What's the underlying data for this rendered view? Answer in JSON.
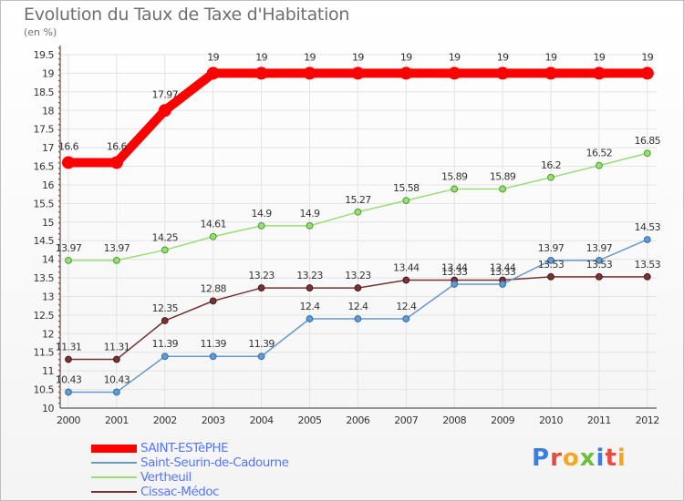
{
  "title": "Evolution du Taux de Taxe d'Habitation",
  "unit": "(en %)",
  "logo": {
    "letters": [
      "P",
      "r",
      "o",
      "x",
      "i",
      "t",
      "i"
    ],
    "colors": [
      "#3a7fe0",
      "#e74c3c",
      "#f5a623",
      "#6cbf3a",
      "#3a7fe0",
      "#e74c3c",
      "#f5a623"
    ]
  },
  "chart_data": {
    "type": "line",
    "title": "Evolution du Taux de Taxe d'Habitation",
    "ylabel": "(en %)",
    "xlabel": "",
    "x": [
      "2000",
      "2001",
      "2002",
      "2003",
      "2004",
      "2005",
      "2006",
      "2007",
      "2008",
      "2009",
      "2010",
      "2011",
      "2012"
    ],
    "ylim": [
      10,
      19.5
    ],
    "yticks": [
      "10",
      "10.5",
      "11",
      "11.5",
      "12",
      "12.5",
      "13",
      "13.5",
      "14",
      "14.5",
      "15",
      "15.5",
      "16",
      "16.5",
      "17",
      "17.5",
      "18",
      "18.5",
      "19",
      "19.5"
    ],
    "grid": true,
    "legend_position": "bottom-left",
    "series": [
      {
        "name": "SAINT-ESTèPHE",
        "color": "#ff0000",
        "values": [
          16.6,
          16.6,
          18,
          19,
          19,
          19,
          19,
          19,
          19,
          19,
          19,
          19,
          19
        ],
        "labels": [
          "16.6",
          "16.6",
          "17.97",
          "19",
          "19",
          "19",
          "19",
          "19",
          "19",
          "19",
          "19",
          "19",
          "19"
        ]
      },
      {
        "name": "Saint-Seurin-de-Cadourne",
        "color": "#6699cc",
        "values": [
          10.43,
          10.43,
          11.39,
          11.39,
          11.39,
          12.4,
          12.4,
          12.4,
          13.33,
          13.33,
          13.97,
          13.97,
          14.53
        ],
        "labels": [
          "10.43",
          "10.43",
          "11.39",
          "11.39",
          "11.39",
          "12.4",
          "12.4",
          "12.4",
          "13.33",
          "13.33",
          "13.97",
          "13.97",
          "14.53"
        ]
      },
      {
        "name": "Vertheuil",
        "color": "#99dd77",
        "values": [
          13.97,
          13.97,
          14.25,
          14.61,
          14.9,
          14.9,
          15.27,
          15.58,
          15.89,
          15.89,
          16.2,
          16.52,
          16.85
        ],
        "labels": [
          "13.97",
          "13.97",
          "14.25",
          "14.61",
          "14.9",
          "14.9",
          "15.27",
          "15.58",
          "15.89",
          "15.89",
          "16.2",
          "16.52",
          "16.85"
        ]
      },
      {
        "name": "Cissac-Médoc",
        "color": "#773333",
        "values": [
          11.31,
          11.31,
          12.35,
          12.88,
          13.23,
          13.23,
          13.23,
          13.44,
          13.44,
          13.44,
          13.53,
          13.53,
          13.53
        ],
        "labels": [
          "11.31",
          "11.31",
          "12.35",
          "12.88",
          "13.23",
          "13.23",
          "13.23",
          "13.44",
          "13.44",
          "13.44",
          "13.53",
          "13.53",
          "13.53"
        ]
      }
    ]
  }
}
